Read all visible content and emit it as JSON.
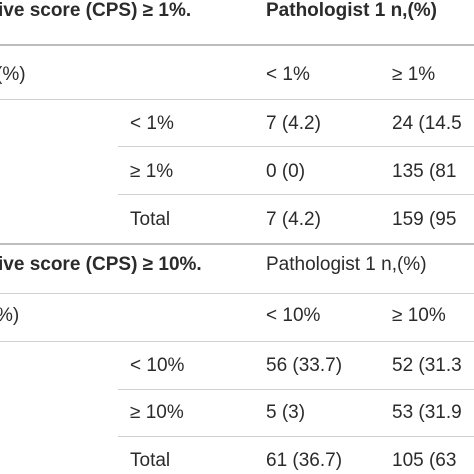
{
  "section1": {
    "title": "ive score (CPS) ≥ 1%.",
    "pathologist_header": "Pathologist 1 n,(%)",
    "row_label_header": "(%)",
    "col_headers": [
      "< 1%",
      "≥ 1%"
    ],
    "rows": [
      {
        "label": "< 1%",
        "c1": "7 (4.2)",
        "c2": "24 (14.5"
      },
      {
        "label": "≥ 1%",
        "c1": "0 (0)",
        "c2": "135 (81"
      },
      {
        "label": "Total",
        "c1": "7 (4.2)",
        "c2": "159 (95"
      }
    ]
  },
  "section2": {
    "title": "ive score (CPS) ≥ 10%.",
    "pathologist_header": "Pathologist 1 n,(%)",
    "row_label_header": "%)",
    "col_headers": [
      "< 10%",
      "≥ 10%"
    ],
    "rows": [
      {
        "label": "< 10%",
        "c1": "56 (33.7)",
        "c2": "52 (31.3"
      },
      {
        "label": "≥ 10%",
        "c1": "5 (3)",
        "c2": "53 (31.9"
      },
      {
        "label": "Total",
        "c1": "61 (36.7)",
        "c2": "105 (63"
      }
    ]
  }
}
